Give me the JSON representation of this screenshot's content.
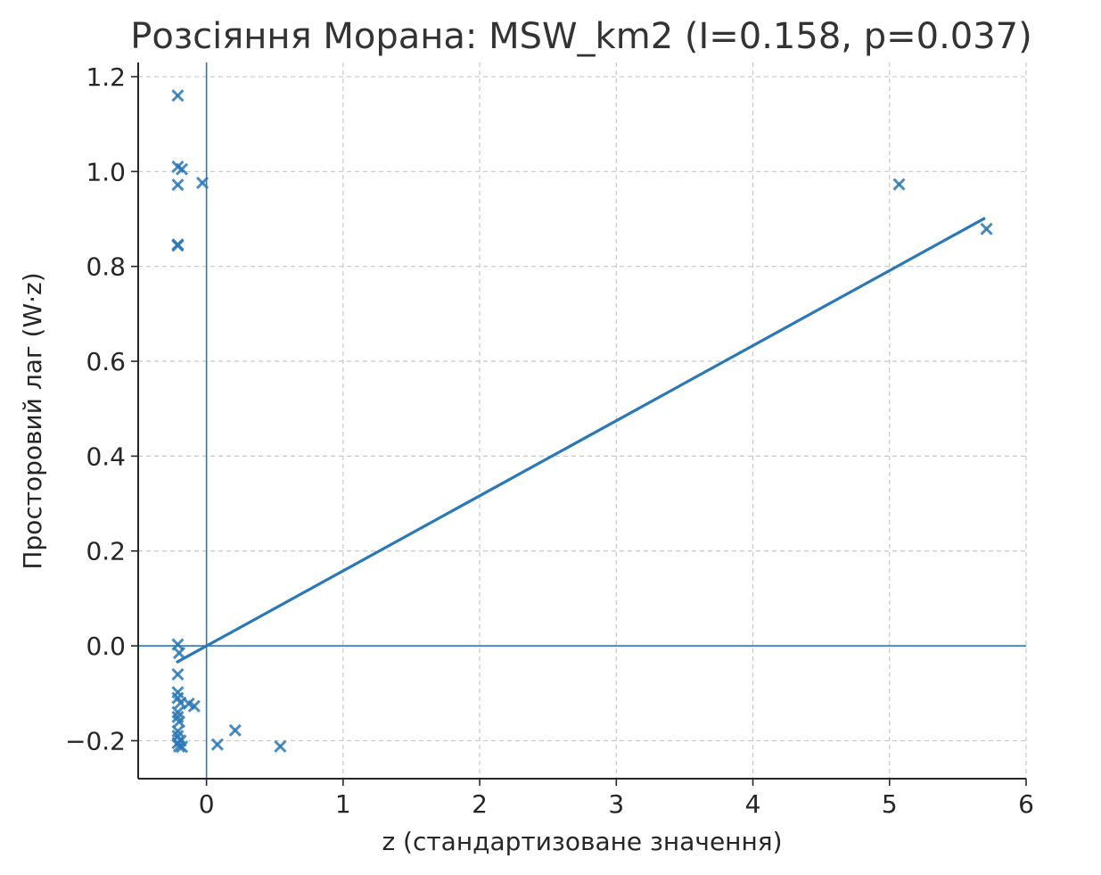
{
  "chart_data": {
    "type": "scatter",
    "title": "Розсіяння Морана: MSW_km2 (I=0.158, p=0.037)",
    "xlabel": "z (стандартизоване значення)",
    "ylabel": "Просторовий лаг (W·z)",
    "xlim": [
      -0.5,
      6.0
    ],
    "ylim": [
      -0.28,
      1.23
    ],
    "xticks": [
      0,
      1,
      2,
      3,
      4,
      5,
      6
    ],
    "xtick_labels": [
      "0",
      "1",
      "2",
      "3",
      "4",
      "5",
      "6"
    ],
    "yticks": [
      -0.2,
      0.0,
      0.2,
      0.4,
      0.6,
      0.8,
      1.0,
      1.2
    ],
    "ytick_labels": [
      "−0.2",
      "0.0",
      "0.2",
      "0.4",
      "0.6",
      "0.8",
      "1.0",
      "1.2"
    ],
    "grid": true,
    "marker": "x",
    "color": "#2a78b5",
    "reference_lines": {
      "x": 0,
      "y": 0
    },
    "regression_line": {
      "x": [
        -0.22,
        5.7
      ],
      "y": [
        -0.035,
        0.902
      ],
      "slope": 0.158
    },
    "points": [
      {
        "x": -0.21,
        "y": 1.16
      },
      {
        "x": -0.21,
        "y": 1.01
      },
      {
        "x": -0.18,
        "y": 1.005
      },
      {
        "x": -0.21,
        "y": 0.972
      },
      {
        "x": -0.03,
        "y": 0.976
      },
      {
        "x": -0.21,
        "y": 0.846
      },
      {
        "x": -0.21,
        "y": 0.844
      },
      {
        "x": -0.21,
        "y": 0.003
      },
      {
        "x": -0.2,
        "y": -0.015
      },
      {
        "x": -0.21,
        "y": -0.06
      },
      {
        "x": -0.21,
        "y": -0.098
      },
      {
        "x": -0.21,
        "y": -0.11
      },
      {
        "x": -0.19,
        "y": -0.12
      },
      {
        "x": -0.13,
        "y": -0.122
      },
      {
        "x": -0.09,
        "y": -0.127
      },
      {
        "x": -0.21,
        "y": -0.14
      },
      {
        "x": -0.21,
        "y": -0.15
      },
      {
        "x": -0.2,
        "y": -0.16
      },
      {
        "x": -0.21,
        "y": -0.18
      },
      {
        "x": -0.21,
        "y": -0.19
      },
      {
        "x": -0.19,
        "y": -0.2
      },
      {
        "x": -0.21,
        "y": -0.205
      },
      {
        "x": -0.2,
        "y": -0.212
      },
      {
        "x": -0.18,
        "y": -0.213
      },
      {
        "x": 0.08,
        "y": -0.208
      },
      {
        "x": 0.21,
        "y": -0.178
      },
      {
        "x": 0.54,
        "y": -0.212
      },
      {
        "x": 5.07,
        "y": 0.973
      },
      {
        "x": 5.71,
        "y": 0.879
      }
    ]
  }
}
